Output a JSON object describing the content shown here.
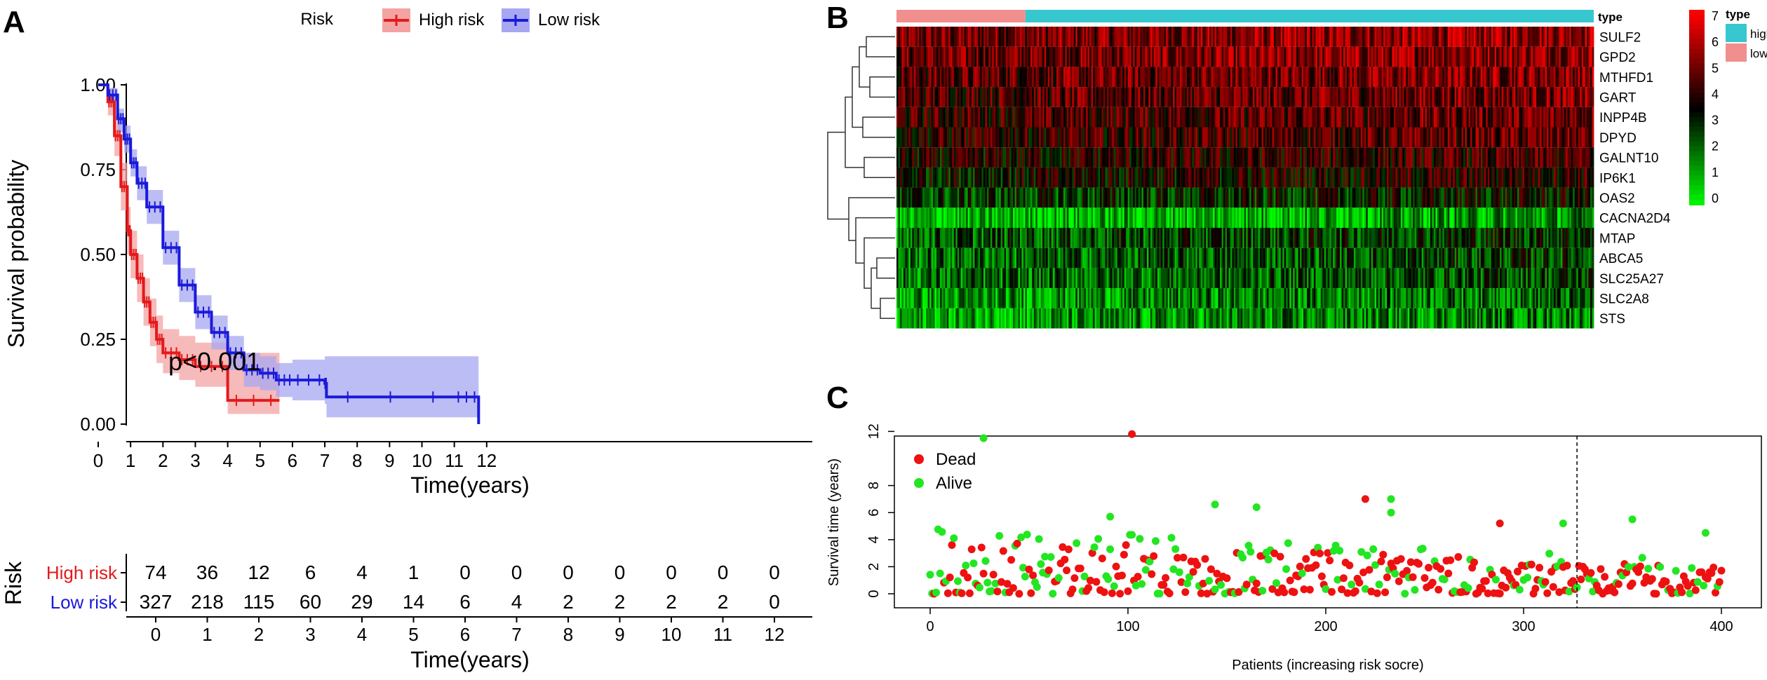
{
  "panels": {
    "A": "A",
    "B": "B",
    "C": "C"
  },
  "chart_data": [
    {
      "id": "km",
      "type": "line",
      "chart_kind": "kaplan-meier survival curve",
      "title": "",
      "xlabel": "Time(years)",
      "ylabel": "Survival probability",
      "xlim": [
        0,
        12
      ],
      "ylim": [
        0,
        1
      ],
      "x_ticks": [
        "0",
        "1",
        "2",
        "3",
        "4",
        "5",
        "6",
        "7",
        "8",
        "9",
        "10",
        "11",
        "12"
      ],
      "y_ticks": [
        "0.00",
        "0.25",
        "0.50",
        "0.75",
        "1.00"
      ],
      "legend": {
        "title": "Risk",
        "placement": "top",
        "entries": [
          "High risk",
          "Low risk"
        ]
      },
      "annotation": "p<0.001",
      "series": [
        {
          "name": "High risk",
          "color": "#e41a1c",
          "ci_color": "#f4a3a3",
          "x": [
            0,
            0.3,
            0.5,
            0.7,
            0.9,
            1.0,
            1.2,
            1.4,
            1.6,
            1.8,
            2.0,
            2.5,
            3.0,
            4.0,
            5.6
          ],
          "y": [
            1.0,
            0.95,
            0.85,
            0.7,
            0.57,
            0.5,
            0.43,
            0.36,
            0.3,
            0.25,
            0.21,
            0.19,
            0.17,
            0.07,
            0.07
          ],
          "lower": [
            1.0,
            0.91,
            0.79,
            0.63,
            0.5,
            0.43,
            0.36,
            0.29,
            0.23,
            0.18,
            0.15,
            0.13,
            0.11,
            0.03,
            0.03
          ],
          "upper": [
            1.0,
            0.99,
            0.91,
            0.77,
            0.64,
            0.57,
            0.5,
            0.43,
            0.37,
            0.32,
            0.28,
            0.26,
            0.24,
            0.21,
            0.21
          ]
        },
        {
          "name": "Low risk",
          "color": "#1a1adb",
          "ci_color": "#a7a7f2",
          "x": [
            0,
            0.3,
            0.6,
            0.8,
            1.0,
            1.2,
            1.5,
            2.0,
            2.5,
            3.0,
            3.5,
            4.0,
            4.5,
            5.0,
            5.5,
            6.0,
            7.0,
            7.05,
            11.0,
            11.75
          ],
          "y": [
            1.0,
            0.97,
            0.9,
            0.84,
            0.77,
            0.71,
            0.64,
            0.52,
            0.41,
            0.33,
            0.27,
            0.21,
            0.16,
            0.15,
            0.13,
            0.13,
            0.12,
            0.08,
            0.08,
            0.0
          ],
          "lower": [
            1.0,
            0.95,
            0.86,
            0.8,
            0.73,
            0.66,
            0.59,
            0.47,
            0.36,
            0.28,
            0.22,
            0.16,
            0.11,
            0.1,
            0.08,
            0.07,
            0.06,
            0.02,
            0.02,
            0.0
          ],
          "upper": [
            1.0,
            0.99,
            0.93,
            0.88,
            0.81,
            0.76,
            0.69,
            0.57,
            0.46,
            0.38,
            0.32,
            0.26,
            0.21,
            0.2,
            0.18,
            0.19,
            0.2,
            0.2,
            0.2,
            0.0
          ]
        }
      ]
    },
    {
      "id": "risk_table",
      "type": "table",
      "ylabel": "Risk",
      "xlabel": "Time(years)",
      "x_ticks": [
        "0",
        "1",
        "2",
        "3",
        "4",
        "5",
        "6",
        "7",
        "8",
        "9",
        "10",
        "11",
        "12"
      ],
      "rows": [
        {
          "name": "High risk",
          "color": "#e41a1c",
          "values": [
            "74",
            "36",
            "12",
            "6",
            "4",
            "1",
            "0",
            "0",
            "0",
            "0",
            "0",
            "0",
            "0"
          ]
        },
        {
          "name": "Low risk",
          "color": "#1a1adb",
          "values": [
            "327",
            "218",
            "115",
            "60",
            "29",
            "14",
            "6",
            "4",
            "2",
            "2",
            "2",
            "2",
            "0"
          ]
        }
      ]
    },
    {
      "id": "heatmap",
      "type": "heatmap",
      "genes": [
        "SULF2",
        "GPD2",
        "MTHFD1",
        "GART",
        "INPP4B",
        "DPYD",
        "GALNT10",
        "IP6K1",
        "OAS2",
        "CACNA2D4",
        "MTAP",
        "ABCA5",
        "SLC25A27",
        "SLC2A8",
        "STS"
      ],
      "gene_mean_levels": [
        5.3,
        5.2,
        5.0,
        4.8,
        4.6,
        4.4,
        4.0,
        3.8,
        3.0,
        1.2,
        2.7,
        2.4,
        2.3,
        1.8,
        1.6
      ],
      "annotation_title": "type",
      "annotation_groups": [
        {
          "label": "high",
          "color": "#36c7cf",
          "fraction": 0.815
        },
        {
          "label": "low",
          "color": "#f18f8f",
          "fraction": 0.185
        }
      ],
      "color_scale": {
        "min": 0,
        "max": 7,
        "colors": [
          "#00ff00",
          "#000000",
          "#ff0000"
        ]
      },
      "colorbar_ticks": [
        "0",
        "1",
        "2",
        "3",
        "4",
        "5",
        "6",
        "7"
      ]
    },
    {
      "id": "scatter",
      "type": "scatter",
      "xlabel": "Patients (increasing risk socre)",
      "ylabel": "Survival time (years)",
      "xlim": [
        0,
        401
      ],
      "ylim": [
        0,
        12
      ],
      "x_ticks": [
        "0",
        "100",
        "200",
        "300",
        "400"
      ],
      "y_ticks": [
        "0",
        "2",
        "4",
        "6",
        "8",
        "12"
      ],
      "cutoff": 327,
      "legend": [
        "Dead",
        "Alive"
      ],
      "colors": {
        "Dead": "#ee1111",
        "Alive": "#22e622"
      },
      "highlight_points": [
        {
          "x": 27,
          "y": 11.5,
          "status": "Alive"
        },
        {
          "x": 102,
          "y": 11.8,
          "status": "Dead"
        },
        {
          "x": 220,
          "y": 7.0,
          "status": "Dead"
        },
        {
          "x": 233,
          "y": 7.0,
          "status": "Alive"
        },
        {
          "x": 233,
          "y": 6.0,
          "status": "Alive"
        },
        {
          "x": 144,
          "y": 6.6,
          "status": "Alive"
        },
        {
          "x": 165,
          "y": 6.4,
          "status": "Alive"
        },
        {
          "x": 355,
          "y": 5.5,
          "status": "Alive"
        },
        {
          "x": 288,
          "y": 5.2,
          "status": "Dead"
        },
        {
          "x": 320,
          "y": 5.2,
          "status": "Alive"
        },
        {
          "x": 392,
          "y": 4.5,
          "status": "Alive"
        },
        {
          "x": 91,
          "y": 5.7,
          "status": "Alive"
        }
      ]
    }
  ]
}
